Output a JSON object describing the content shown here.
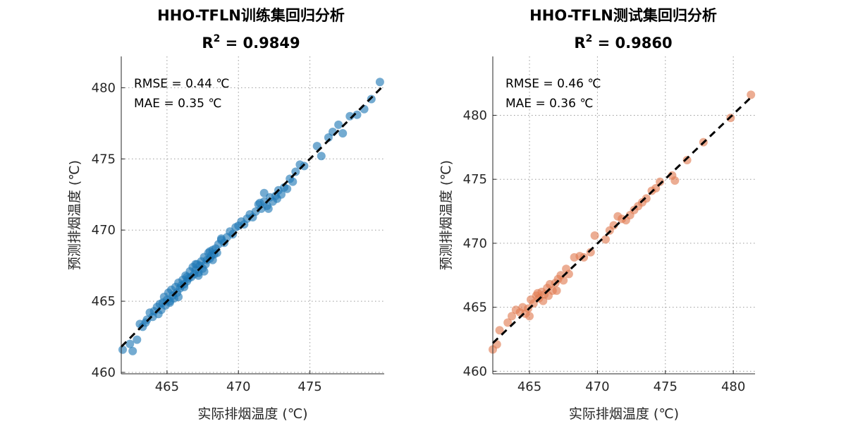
{
  "chart_data": [
    {
      "type": "scatter",
      "title": "HHO-TFLN训练集回归分析",
      "subtitle_prefix": "R",
      "subtitle_sup": "2",
      "subtitle_value": " = 0.9849",
      "xlabel": "实际排烟温度 (℃)",
      "ylabel": "预测排烟温度 (℃)",
      "xlim": [
        461.8,
        480.2
      ],
      "ylim": [
        459.9,
        482.2
      ],
      "xticks": [
        465,
        470,
        475
      ],
      "yticks": [
        460,
        465,
        470,
        475,
        480
      ],
      "grid": true,
      "annotations": [
        "RMSE = 0.44 ℃",
        "MAE = 0.35 ℃"
      ],
      "point_color": "#1f77b4",
      "fit_line": {
        "x": [
          461.8,
          480.0
        ],
        "y": [
          461.8,
          480.0
        ]
      },
      "series": [
        {
          "x": [
            461.9,
            462.4,
            462.6,
            462.9,
            463.1,
            463.3,
            463.5,
            463.6,
            463.8,
            464.0,
            464.1,
            464.3,
            464.4,
            464.5,
            464.6,
            464.7,
            464.8,
            464.9,
            465.0,
            465.1,
            465.2,
            465.3,
            465.4,
            465.5,
            465.6,
            465.7,
            465.8,
            465.9,
            466.0,
            466.1,
            466.2,
            466.3,
            466.4,
            466.5,
            466.6,
            466.7,
            466.8,
            466.9,
            467.0,
            467.1,
            467.2,
            467.3,
            467.4,
            467.5,
            467.6,
            467.7,
            467.8,
            467.9,
            468.0,
            468.1,
            468.2,
            468.3,
            468.4,
            468.5,
            468.6,
            468.8,
            469.0,
            469.2,
            469.4,
            469.6,
            469.8,
            470.0,
            470.2,
            470.4,
            470.6,
            470.8,
            471.0,
            471.2,
            471.4,
            471.6,
            471.8,
            472.0,
            472.2,
            472.4,
            472.6,
            472.8,
            473.0,
            473.2,
            473.4,
            473.6,
            473.8,
            474.0,
            474.3,
            474.6,
            475.5,
            475.8,
            476.3,
            476.6,
            477.0,
            477.3,
            477.8,
            478.3,
            478.8,
            479.3,
            479.9,
            465.2,
            465.8,
            466.4,
            467.0,
            467.6,
            468.2,
            468.8,
            471.5,
            472.1,
            472.7,
            466.2,
            467.2,
            468.0,
            471.8
          ],
          "y": [
            461.6,
            462.0,
            461.5,
            462.3,
            463.4,
            463.2,
            463.5,
            463.7,
            464.2,
            463.9,
            464.3,
            464.6,
            464.1,
            464.8,
            464.4,
            464.9,
            465.3,
            464.7,
            465.1,
            465.6,
            464.9,
            465.8,
            465.4,
            465.2,
            466.0,
            465.6,
            466.3,
            465.9,
            466.1,
            466.5,
            466.2,
            466.8,
            466.4,
            466.6,
            467.1,
            466.7,
            467.4,
            466.9,
            467.2,
            467.6,
            467.0,
            467.5,
            467.8,
            467.3,
            468.1,
            467.6,
            467.9,
            468.4,
            468.0,
            468.2,
            468.6,
            468.3,
            468.7,
            468.4,
            469.0,
            469.3,
            469.1,
            469.5,
            469.9,
            469.7,
            470.2,
            470.3,
            470.6,
            470.4,
            470.8,
            471.1,
            470.9,
            471.3,
            471.8,
            471.5,
            472.0,
            471.7,
            472.3,
            472.0,
            472.4,
            472.8,
            472.5,
            473.0,
            472.9,
            473.6,
            473.4,
            474.1,
            474.6,
            474.5,
            475.9,
            475.2,
            476.5,
            476.9,
            477.4,
            476.8,
            478.0,
            478.1,
            478.5,
            479.2,
            480.4,
            465.0,
            465.3,
            466.7,
            467.6,
            467.1,
            467.9,
            469.4,
            471.9,
            471.5,
            472.2,
            466.0,
            466.8,
            468.5,
            472.6
          ]
        }
      ]
    },
    {
      "type": "scatter",
      "title": "HHO-TFLN测试集回归分析",
      "subtitle_prefix": "R",
      "subtitle_sup": "2",
      "subtitle_value": " = 0.9860",
      "xlabel": "实际排烟温度 (℃)",
      "ylabel": "预测排烟温度 (℃)",
      "xlim": [
        462.3,
        481.6
      ],
      "ylim": [
        459.8,
        484.6
      ],
      "xticks": [
        465,
        470,
        475,
        480
      ],
      "yticks": [
        460,
        465,
        470,
        475,
        480
      ],
      "grid": true,
      "annotations": [
        "RMSE = 0.46 ℃",
        "MAE = 0.36 ℃"
      ],
      "point_color": "#e07b50",
      "fit_line": {
        "x": [
          462.3,
          481.3
        ],
        "y": [
          462.2,
          481.4
        ]
      },
      "series": [
        {
          "x": [
            462.3,
            462.6,
            462.8,
            463.4,
            463.7,
            464.0,
            464.3,
            464.5,
            464.7,
            464.9,
            465.1,
            465.3,
            465.5,
            465.7,
            465.9,
            466.1,
            466.3,
            466.5,
            466.7,
            466.9,
            467.1,
            467.3,
            467.5,
            467.7,
            467.9,
            468.3,
            468.7,
            469.0,
            469.5,
            469.8,
            470.6,
            470.9,
            471.2,
            471.5,
            471.8,
            472.1,
            472.4,
            472.7,
            473.0,
            473.3,
            473.6,
            474.0,
            474.3,
            474.6,
            475.5,
            475.7,
            476.6,
            477.8,
            479.8,
            481.3,
            465.0,
            466.0,
            467.0,
            465.6,
            466.4
          ],
          "y": [
            461.7,
            462.1,
            463.2,
            463.8,
            464.3,
            464.8,
            464.6,
            465.0,
            464.5,
            464.9,
            465.6,
            465.3,
            465.9,
            465.7,
            466.2,
            466.0,
            466.5,
            466.8,
            466.3,
            466.9,
            467.2,
            467.5,
            467.1,
            468.0,
            467.6,
            468.9,
            469.0,
            468.9,
            469.3,
            470.6,
            470.3,
            471.0,
            471.4,
            472.1,
            471.9,
            471.8,
            472.2,
            472.6,
            472.9,
            473.2,
            473.5,
            474.1,
            474.3,
            474.8,
            475.3,
            474.9,
            476.5,
            477.9,
            479.8,
            481.6,
            464.3,
            465.5,
            466.3,
            466.1,
            465.9
          ]
        }
      ]
    }
  ]
}
